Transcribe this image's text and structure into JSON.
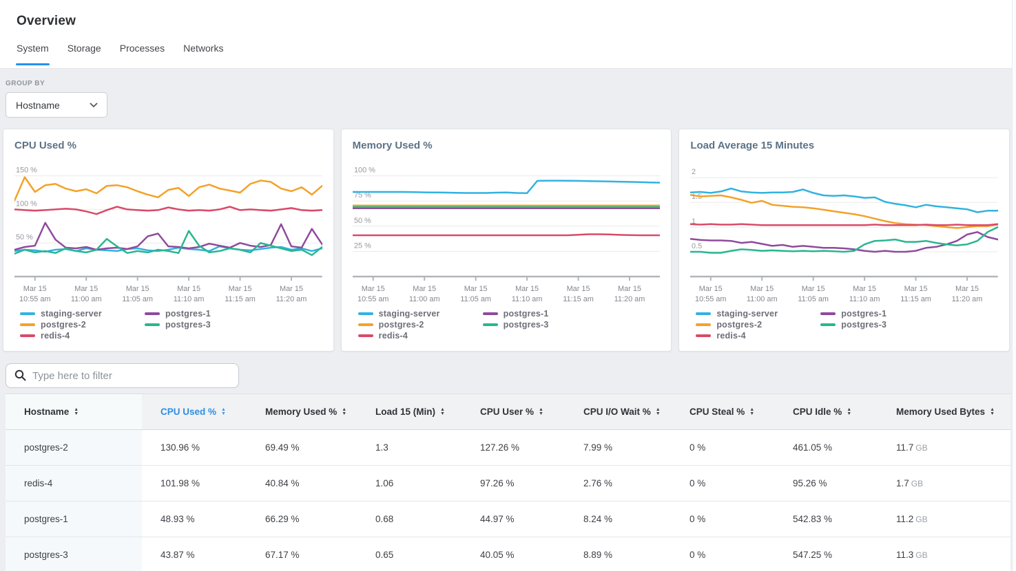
{
  "header": {
    "title": "Overview",
    "tabs": [
      {
        "label": "System",
        "active": true
      },
      {
        "label": "Storage",
        "active": false
      },
      {
        "label": "Processes",
        "active": false
      },
      {
        "label": "Networks",
        "active": false
      }
    ]
  },
  "group_by": {
    "label": "GROUP BY",
    "value": "Hostname"
  },
  "filter": {
    "placeholder": "Type here to filter"
  },
  "colors": {
    "accent_blue": "#2490ef",
    "sorted_column_blue": "#2e8ee5",
    "staging_server": "#31b2e0",
    "postgres_1": "#8f4a9c",
    "postgres_2": "#f4a127",
    "postgres_3": "#29b690",
    "redis_4": "#d94a68"
  },
  "chart_data": [
    {
      "type": "line",
      "title": "CPU Used %",
      "grid": true,
      "legend_position": "bottom",
      "ylim": [
        0,
        168
      ],
      "yticks": [
        {
          "value": 150,
          "label": "150 %"
        },
        {
          "value": 100,
          "label": "100 %"
        },
        {
          "value": 50,
          "label": "50 %"
        }
      ],
      "tick_indices": [
        2,
        7,
        12,
        17,
        22,
        27
      ],
      "xticks": [
        {
          "line1": "Mar 15",
          "line2": "10:55 am"
        },
        {
          "line1": "Mar 15",
          "line2": "11:00 am"
        },
        {
          "line1": "Mar 15",
          "line2": "11:05 am"
        },
        {
          "line1": "Mar 15",
          "line2": "11:10 am"
        },
        {
          "line1": "Mar 15",
          "line2": "11:15 am"
        },
        {
          "line1": "Mar 15",
          "line2": "11:20 am"
        }
      ],
      "series": [
        {
          "name": "staging-server",
          "color": "#31b2e0",
          "values": [
            38,
            40,
            39,
            37,
            40,
            41,
            38,
            42,
            40,
            39,
            38,
            41,
            42,
            39,
            38,
            40,
            43,
            41,
            40,
            38,
            45,
            42,
            40,
            39,
            41,
            43,
            44,
            40,
            42,
            38,
            42
          ]
        },
        {
          "name": "postgres-2",
          "color": "#f4a127",
          "values": [
            113,
            148,
            126,
            136,
            138,
            131,
            127,
            130,
            124,
            135,
            136,
            133,
            127,
            122,
            118,
            129,
            132,
            120,
            133,
            137,
            131,
            128,
            125,
            138,
            143,
            141,
            131,
            127,
            133,
            122,
            135
          ]
        },
        {
          "name": "redis-4",
          "color": "#d94a68",
          "values": [
            100,
            99,
            98,
            99,
            100,
            101,
            100,
            97,
            93,
            99,
            104,
            100,
            99,
            98,
            99,
            103,
            100,
            98,
            99,
            98,
            100,
            104,
            99,
            100,
            99,
            98,
            100,
            102,
            99,
            98,
            99
          ]
        },
        {
          "name": "postgres-1",
          "color": "#8f4a9c",
          "values": [
            40,
            44,
            46,
            80,
            55,
            43,
            42,
            44,
            40,
            42,
            43,
            41,
            45,
            60,
            64,
            45,
            44,
            42,
            44,
            49,
            46,
            43,
            50,
            46,
            44,
            47,
            78,
            45,
            43,
            71,
            48
          ]
        },
        {
          "name": "postgres-3",
          "color": "#29b690",
          "values": [
            34,
            40,
            36,
            38,
            35,
            42,
            38,
            36,
            40,
            56,
            45,
            35,
            38,
            36,
            40,
            38,
            35,
            68,
            46,
            36,
            38,
            42,
            40,
            36,
            50,
            46,
            42,
            38,
            40,
            32,
            44
          ]
        }
      ]
    },
    {
      "type": "line",
      "title": "Memory Used %",
      "grid": true,
      "legend_position": "bottom",
      "ylim": [
        0,
        112
      ],
      "yticks": [
        {
          "value": 100,
          "label": "100 %"
        },
        {
          "value": 75,
          "label": "75 %"
        },
        {
          "value": 50,
          "label": "50 %"
        },
        {
          "value": 25,
          "label": "25 %"
        }
      ],
      "tick_indices": [
        2,
        7,
        12,
        17,
        22,
        27
      ],
      "xticks": [
        {
          "line1": "Mar 15",
          "line2": "10:55 am"
        },
        {
          "line1": "Mar 15",
          "line2": "11:00 am"
        },
        {
          "line1": "Mar 15",
          "line2": "11:05 am"
        },
        {
          "line1": "Mar 15",
          "line2": "11:10 am"
        },
        {
          "line1": "Mar 15",
          "line2": "11:15 am"
        },
        {
          "line1": "Mar 15",
          "line2": "11:20 am"
        }
      ],
      "series": [
        {
          "name": "staging-server",
          "color": "#31b2e0",
          "values": [
            84,
            84,
            84,
            84,
            84,
            84,
            83.8,
            83.6,
            83.5,
            83.4,
            83.2,
            83,
            83,
            83,
            83.3,
            83.5,
            83,
            82.8,
            95,
            95.2,
            95.2,
            95.1,
            95,
            94.8,
            94.6,
            94.4,
            94.2,
            94,
            93.7,
            93.4,
            93.2
          ]
        },
        {
          "name": "postgres-2",
          "color": "#f4a127",
          "values": [
            70.5,
            70.5,
            70.5,
            70.5,
            70.5,
            70.5,
            70.5,
            70.5,
            70.5,
            70.5,
            70.5,
            70.5,
            70.5,
            70.5,
            70.5,
            70.5,
            70.5,
            70.5,
            70.5,
            70.5,
            70.5,
            70.5,
            70.5,
            70.5,
            70.5,
            70.5,
            70.5,
            70.5,
            70.5,
            70.5,
            70.5
          ]
        },
        {
          "name": "redis-4",
          "color": "#d94a68",
          "values": [
            41,
            41,
            41,
            41,
            41,
            41,
            41,
            41,
            41,
            41,
            41,
            41,
            41,
            41,
            41,
            41,
            41,
            41,
            41,
            41,
            41,
            41,
            41.5,
            42,
            42,
            41.8,
            41.4,
            41.2,
            41,
            41,
            41
          ]
        },
        {
          "name": "postgres-1",
          "color": "#8f4a9c",
          "values": [
            67.8,
            67.8,
            67.8,
            67.8,
            67.8,
            67.8,
            67.8,
            67.8,
            67.8,
            67.8,
            67.8,
            67.8,
            67.8,
            67.8,
            67.8,
            67.8,
            67.8,
            67.8,
            67.8,
            67.8,
            67.8,
            67.8,
            67.8,
            67.8,
            67.8,
            67.8,
            67.8,
            67.8,
            67.8,
            67.8,
            67.8
          ]
        },
        {
          "name": "postgres-3",
          "color": "#29b690",
          "values": [
            69,
            69,
            69,
            69,
            69,
            69,
            69,
            69,
            69,
            69,
            69,
            69,
            69,
            69,
            69,
            69,
            69,
            69,
            69,
            69,
            69,
            69,
            69,
            69,
            69,
            69,
            69,
            69,
            69,
            69,
            69
          ]
        }
      ]
    },
    {
      "type": "line",
      "title": "Load Average 15 Minutes",
      "grid": true,
      "legend_position": "bottom",
      "ylim": [
        0,
        2.28
      ],
      "yticks": [
        {
          "value": 2,
          "label": "2"
        },
        {
          "value": 1.5,
          "label": "1.5"
        },
        {
          "value": 1,
          "label": "1"
        },
        {
          "value": 0.5,
          "label": "0.5"
        }
      ],
      "tick_indices": [
        2,
        7,
        12,
        17,
        22,
        27
      ],
      "xticks": [
        {
          "line1": "Mar 15",
          "line2": "10:55 am"
        },
        {
          "line1": "Mar 15",
          "line2": "11:00 am"
        },
        {
          "line1": "Mar 15",
          "line2": "11:05 am"
        },
        {
          "line1": "Mar 15",
          "line2": "11:10 am"
        },
        {
          "line1": "Mar 15",
          "line2": "11:15 am"
        },
        {
          "line1": "Mar 15",
          "line2": "11:20 am"
        }
      ],
      "series": [
        {
          "name": "staging-server",
          "color": "#31b2e0",
          "values": [
            1.7,
            1.71,
            1.69,
            1.72,
            1.78,
            1.72,
            1.7,
            1.69,
            1.7,
            1.7,
            1.71,
            1.76,
            1.69,
            1.64,
            1.63,
            1.64,
            1.62,
            1.59,
            1.6,
            1.51,
            1.47,
            1.44,
            1.4,
            1.45,
            1.42,
            1.4,
            1.38,
            1.36,
            1.3,
            1.33,
            1.33
          ]
        },
        {
          "name": "postgres-2",
          "color": "#f4a127",
          "values": [
            1.65,
            1.62,
            1.63,
            1.64,
            1.6,
            1.55,
            1.49,
            1.53,
            1.45,
            1.43,
            1.41,
            1.4,
            1.38,
            1.35,
            1.32,
            1.29,
            1.26,
            1.22,
            1.17,
            1.12,
            1.08,
            1.06,
            1.05,
            1.04,
            1.02,
            1.0,
            0.98,
            1.0,
            1.02,
            1.02,
            1.05
          ]
        },
        {
          "name": "redis-4",
          "color": "#d94a68",
          "values": [
            1.06,
            1.05,
            1.06,
            1.05,
            1.05,
            1.06,
            1.05,
            1.04,
            1.04,
            1.04,
            1.04,
            1.04,
            1.04,
            1.04,
            1.04,
            1.04,
            1.04,
            1.04,
            1.05,
            1.04,
            1.04,
            1.04,
            1.04,
            1.05,
            1.04,
            1.04,
            1.05,
            1.04,
            1.04,
            1.04,
            1.06
          ]
        },
        {
          "name": "postgres-1",
          "color": "#8f4a9c",
          "values": [
            0.76,
            0.74,
            0.73,
            0.73,
            0.72,
            0.68,
            0.7,
            0.66,
            0.62,
            0.64,
            0.6,
            0.62,
            0.6,
            0.58,
            0.58,
            0.57,
            0.55,
            0.52,
            0.5,
            0.52,
            0.5,
            0.5,
            0.52,
            0.58,
            0.6,
            0.65,
            0.72,
            0.85,
            0.9,
            0.8,
            0.75
          ]
        },
        {
          "name": "postgres-3",
          "color": "#29b690",
          "values": [
            0.5,
            0.5,
            0.48,
            0.48,
            0.52,
            0.55,
            0.54,
            0.52,
            0.53,
            0.52,
            0.51,
            0.52,
            0.51,
            0.52,
            0.51,
            0.5,
            0.52,
            0.65,
            0.72,
            0.73,
            0.75,
            0.7,
            0.7,
            0.72,
            0.68,
            0.65,
            0.63,
            0.65,
            0.72,
            0.9,
            1.0
          ]
        }
      ]
    }
  ],
  "table": {
    "columns": [
      {
        "label": "Hostname",
        "sorted": false
      },
      {
        "label": "CPU Used %",
        "sorted": true
      },
      {
        "label": "Memory Used %",
        "sorted": false
      },
      {
        "label": "Load 15 (Min)",
        "sorted": false
      },
      {
        "label": "CPU User %",
        "sorted": false
      },
      {
        "label": "CPU I/O Wait %",
        "sorted": false
      },
      {
        "label": "CPU Steal %",
        "sorted": false
      },
      {
        "label": "CPU Idle %",
        "sorted": false
      },
      {
        "label": "Memory Used Bytes",
        "sorted": false
      }
    ],
    "rows": [
      {
        "hostname": "postgres-2",
        "cpu_used": "130.96 %",
        "memory_used": "69.49 %",
        "load_15": "1.3",
        "cpu_user": "127.26 %",
        "cpu_io_wait": "7.99 %",
        "cpu_steal": "0 %",
        "cpu_idle": "461.05 %",
        "memory_used_bytes": {
          "value": "11.7",
          "unit": "GB"
        }
      },
      {
        "hostname": "redis-4",
        "cpu_used": "101.98 %",
        "memory_used": "40.84 %",
        "load_15": "1.06",
        "cpu_user": "97.26 %",
        "cpu_io_wait": "2.76 %",
        "cpu_steal": "0 %",
        "cpu_idle": "95.26 %",
        "memory_used_bytes": {
          "value": "1.7",
          "unit": "GB"
        }
      },
      {
        "hostname": "postgres-1",
        "cpu_used": "48.93 %",
        "memory_used": "66.29 %",
        "load_15": "0.68",
        "cpu_user": "44.97 %",
        "cpu_io_wait": "8.24 %",
        "cpu_steal": "0 %",
        "cpu_idle": "542.83 %",
        "memory_used_bytes": {
          "value": "11.2",
          "unit": "GB"
        }
      },
      {
        "hostname": "postgres-3",
        "cpu_used": "43.87 %",
        "memory_used": "67.17 %",
        "load_15": "0.65",
        "cpu_user": "40.05 %",
        "cpu_io_wait": "8.89 %",
        "cpu_steal": "0 %",
        "cpu_idle": "547.25 %",
        "memory_used_bytes": {
          "value": "11.3",
          "unit": "GB"
        }
      }
    ]
  }
}
